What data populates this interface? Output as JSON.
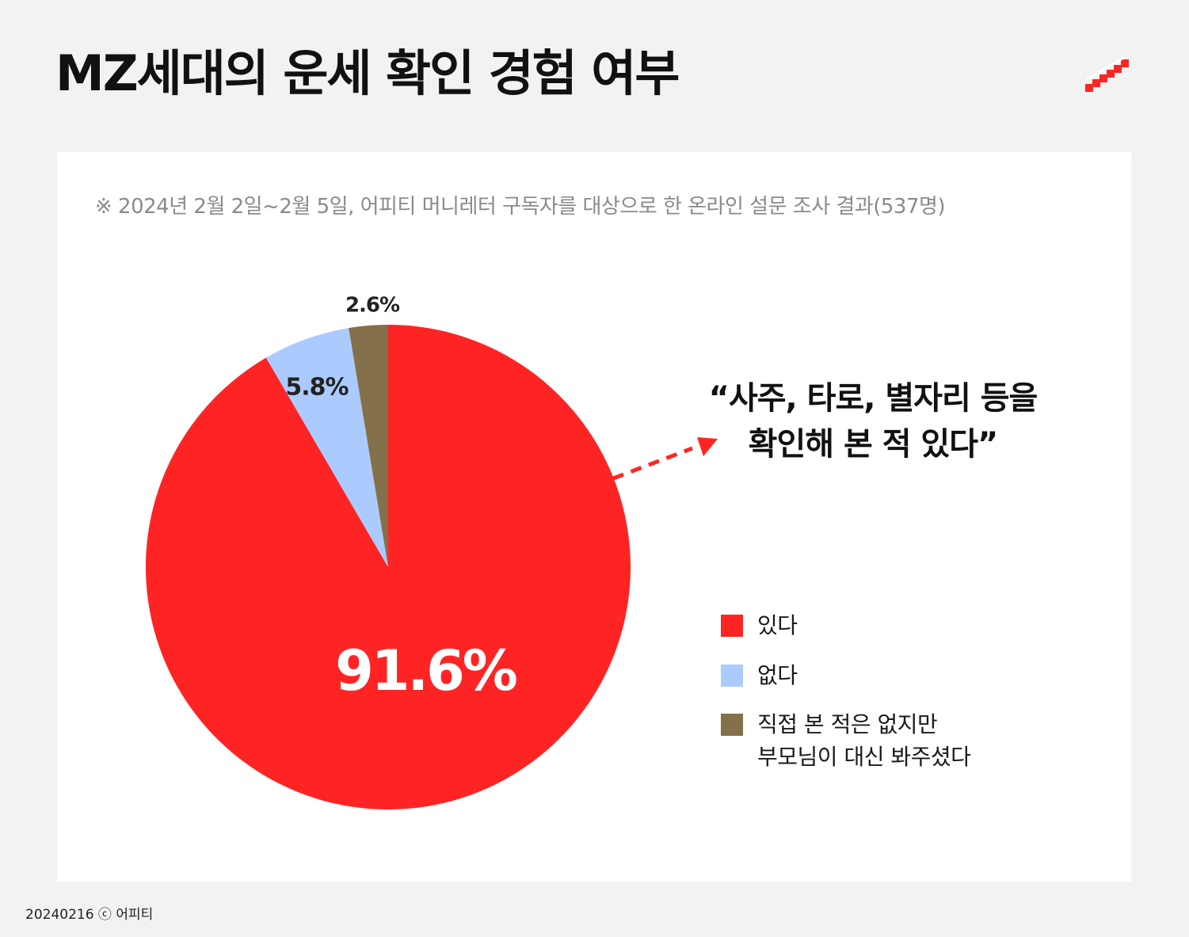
{
  "title": "MZ세대의 운세 확인 경험 여부",
  "survey_note": "※ 2024년 2월 2일~2월 5일, 어피티 머니레터 구독자를 대상으로 한 온라인 설문 조사 결과(537명)",
  "quote": {
    "line1": "“사주, 타로, 별자리 등을",
    "line2": "확인해 본 적 있다”"
  },
  "footer": "20240216 ⓒ 어피티",
  "colors": {
    "accent_red": "#ff2424",
    "light_blue": "#abcbff",
    "brown": "#84704a"
  },
  "brand_logo": "stair-stripe-logo",
  "chart_data": {
    "type": "pie",
    "categories": [
      "있다",
      "없다",
      "직접 본 적은 없지만\n부모님이 대신 봐주셨다"
    ],
    "values": [
      91.6,
      5.8,
      2.6
    ],
    "data_labels": [
      "91.6%",
      "5.8%",
      "2.6%"
    ],
    "colors": [
      "#ff2424",
      "#abcbff",
      "#84704a"
    ],
    "start_angle": "12 o'clock",
    "direction": "clockwise",
    "legend": "right"
  }
}
